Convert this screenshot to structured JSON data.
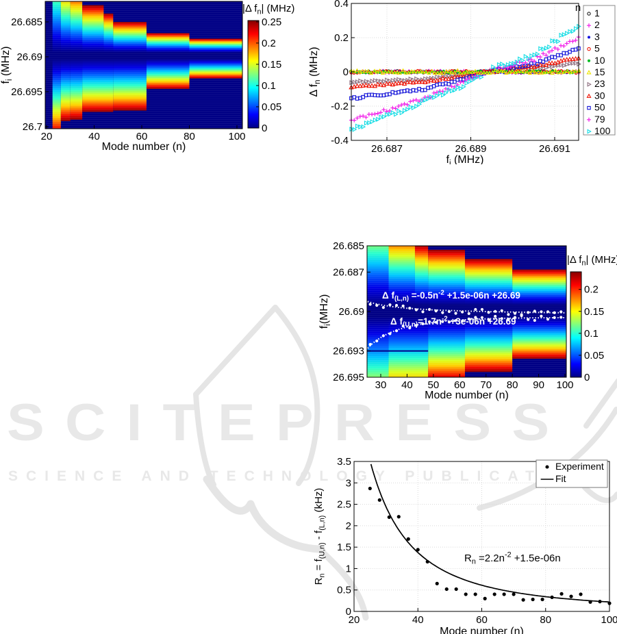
{
  "watermark": {
    "line1": "SCITEPRESS",
    "line2": "SCIENCE AND TECHNOLOGY PUBLICATIONS",
    "color": "#e8e8e8",
    "emblem_color": "#e5e5e5"
  },
  "palette": {
    "heat_background": "#000085",
    "jet_colorbar": [
      [
        0,
        "#000085"
      ],
      [
        0.125,
        "#0000ff"
      ],
      [
        0.375,
        "#00ffff"
      ],
      [
        0.625,
        "#ffff00"
      ],
      [
        0.875,
        "#ff0000"
      ],
      [
        1,
        "#870000"
      ]
    ],
    "jet_band": [
      [
        0,
        "#000085"
      ],
      [
        0.17,
        "#0000e8"
      ],
      [
        0.3,
        "#0063ff"
      ],
      [
        0.41,
        "#00c8ff"
      ],
      [
        0.51,
        "#29ffce"
      ],
      [
        0.6,
        "#85ff72"
      ],
      [
        0.68,
        "#dcff1f"
      ],
      [
        0.76,
        "#ffcf00"
      ],
      [
        0.84,
        "#ff6400"
      ],
      [
        0.92,
        "#ef0500"
      ],
      [
        1,
        "#8c0000"
      ]
    ]
  },
  "chart_data": [
    {
      "id": "heatmap_top_left",
      "type": "heatmap",
      "xlabel": "Mode number (n)",
      "ylabel": "f_{i} (MHz)",
      "colorbar_label": "|Δ f_{n}| (MHz)",
      "x_ticks": [
        "20",
        "40",
        "60",
        "80",
        "100"
      ],
      "x_tick_values": [
        20,
        40,
        60,
        80,
        100
      ],
      "y_ticks": [
        "26.685",
        "26.69",
        "26.695",
        "26.7"
      ],
      "y_tick_values": [
        26.685,
        26.69,
        26.695,
        26.7
      ],
      "colorbar_ticks": [
        "0",
        "0.05",
        "0.1",
        "0.15",
        "0.2",
        "0.25"
      ],
      "colorbar_tick_values": [
        0,
        0.05,
        0.1,
        0.15,
        0.2,
        0.25
      ],
      "colorbar_max": 0.253,
      "x_range": [
        19.4,
        102.3
      ],
      "y_range": [
        26.682,
        26.7003
      ],
      "band_center": [
        26.6894,
        26.6903
      ],
      "upper_steps": [
        [
          22.5,
          26,
          26.6756
        ],
        [
          26,
          30,
          26.6794
        ],
        [
          30,
          35,
          26.6806
        ],
        [
          35,
          44,
          26.6826
        ],
        [
          44,
          48,
          26.6838
        ],
        [
          48,
          62,
          26.685
        ],
        [
          62,
          80,
          26.6866
        ],
        [
          80,
          102.3,
          26.6874
        ]
      ],
      "lower_steps": [
        [
          22.5,
          26,
          26.7012
        ],
        [
          26,
          30,
          26.6992
        ],
        [
          30,
          35,
          26.699
        ],
        [
          35,
          48,
          26.6979
        ],
        [
          48,
          62,
          26.6977
        ],
        [
          62,
          80,
          26.6946
        ],
        [
          80,
          102.3,
          26.6931
        ]
      ]
    },
    {
      "id": "scatter_top_right",
      "type": "scatter",
      "xlabel": "f_{i} (MHz)",
      "ylabel": "Δ f_{n} (MHz)",
      "legend_title": "n",
      "x_ticks": [
        "26.687",
        "26.689",
        "26.691"
      ],
      "x_tick_values": [
        26.687,
        26.689,
        26.691
      ],
      "y_ticks": [
        "0.4",
        "0.2",
        "0",
        "-0.2",
        "-0.4"
      ],
      "y_tick_values": [
        0.4,
        0.2,
        0,
        -0.2,
        -0.4
      ],
      "x_range": [
        26.68615,
        26.69157
      ],
      "y_range": [
        -0.4,
        0.4
      ],
      "series": [
        {
          "label": "1",
          "color": "#1a1a1a",
          "marker": "circle-open",
          "flat": true,
          "noise": 0.012
        },
        {
          "label": "2",
          "color": "#f01ce8",
          "marker": "plus",
          "flat": true,
          "noise": 0.014
        },
        {
          "label": "3",
          "color": "#1414e0",
          "marker": "dot",
          "flat": true,
          "noise": 0.012
        },
        {
          "label": "5",
          "color": "#ee1100",
          "marker": "circle-open",
          "flat": true,
          "noise": 0.013
        },
        {
          "label": "10",
          "color": "#00bb22",
          "marker": "dot",
          "flat": true,
          "noise": 0.014
        },
        {
          "label": "15",
          "color": "#ece400",
          "marker": "tri-open",
          "flat": true,
          "noise": 0.016
        },
        {
          "label": "23",
          "color": "#8e7080",
          "marker": "tri-right-open",
          "flat": false,
          "noise": 0.01,
          "anchors": [
            [
              26.6861,
              -0.06
            ],
            [
              26.6879,
              -0.042
            ],
            [
              26.68875,
              -0.02
            ],
            [
              26.68955,
              0.004
            ],
            [
              26.6905,
              0.022
            ],
            [
              26.69155,
              0.05
            ]
          ]
        },
        {
          "label": "30",
          "color": "#ee1100",
          "marker": "tri-open",
          "flat": false,
          "noise": 0.012,
          "anchors": [
            [
              26.6861,
              -0.088
            ],
            [
              26.6879,
              -0.058
            ],
            [
              26.68875,
              -0.028
            ],
            [
              26.68955,
              0.005
            ],
            [
              26.6905,
              0.03
            ],
            [
              26.69155,
              0.078
            ]
          ]
        },
        {
          "label": "50",
          "color": "#1313d8",
          "marker": "square-open",
          "flat": false,
          "noise": 0.014,
          "anchors": [
            [
              26.6861,
              -0.155
            ],
            [
              26.6879,
              -0.1
            ],
            [
              26.68875,
              -0.048
            ],
            [
              26.68955,
              0.008
            ],
            [
              26.6905,
              0.045
            ],
            [
              26.69155,
              0.132
            ]
          ]
        },
        {
          "label": "79",
          "color": "#f01ce8",
          "marker": "plus",
          "flat": false,
          "noise": 0.022,
          "anchors": [
            [
              26.6861,
              -0.29
            ],
            [
              26.6879,
              -0.155
            ],
            [
              26.68875,
              -0.07
            ],
            [
              26.68955,
              0.012
            ],
            [
              26.6905,
              0.07
            ],
            [
              26.69155,
              0.2
            ]
          ]
        },
        {
          "label": "100",
          "color": "#12dce4",
          "marker": "tri-right-open",
          "flat": false,
          "noise": 0.026,
          "anchors": [
            [
              26.6861,
              -0.345
            ],
            [
              26.6879,
              -0.175
            ],
            [
              26.68875,
              -0.085
            ],
            [
              26.68955,
              0.02
            ],
            [
              26.6905,
              0.1
            ],
            [
              26.69155,
              0.265
            ]
          ]
        }
      ]
    },
    {
      "id": "heatmap_middle_right",
      "type": "heatmap",
      "xlabel": "Mode number (n)",
      "ylabel": "f_{i}(MHz)",
      "colorbar_label": "|Δ f_{n}| (MHz)",
      "x_ticks": [
        "30",
        "40",
        "50",
        "60",
        "70",
        "80",
        "90",
        "100"
      ],
      "x_tick_values": [
        30,
        40,
        50,
        60,
        70,
        80,
        90,
        100
      ],
      "y_ticks": [
        "26.685",
        "26.687",
        "26.69",
        "26.693",
        "26.695"
      ],
      "y_tick_values": [
        26.685,
        26.687,
        26.69,
        26.693,
        26.695
      ],
      "colorbar_ticks": [
        "0",
        "0.05",
        "0.1",
        "0.15",
        "0.2"
      ],
      "colorbar_tick_values": [
        0,
        0.05,
        0.1,
        0.15,
        0.2
      ],
      "colorbar_max": 0.24,
      "x_range": [
        24.8,
        100.5
      ],
      "y_range": [
        26.685,
        26.695
      ],
      "band_center": [
        26.6895,
        26.6904
      ],
      "upper_steps": [
        [
          24.8,
          33,
          26.6818
        ],
        [
          33,
          43,
          26.684
        ],
        [
          43,
          48,
          26.6849
        ],
        [
          48,
          62,
          26.6853
        ],
        [
          62,
          80,
          26.686
        ],
        [
          80,
          100.5,
          26.6868
        ]
      ],
      "lower_steps": [
        [
          24.8,
          33,
          26.698
        ],
        [
          33,
          48,
          26.6966
        ],
        [
          48,
          62,
          26.6953
        ],
        [
          62,
          80,
          26.6946
        ],
        [
          80,
          100.5,
          26.6936
        ]
      ],
      "dark_line": {
        "f": 26.693,
        "n_range": [
          24.8,
          48
        ]
      },
      "fit_curves": [
        {
          "name": "lower-branch-fit",
          "a": -0.5,
          "b": 1.5e-06,
          "c": 26.69,
          "equation": "Δ f_{(L,n)} =-0.5n^{-2} +1.5e-06n +26.69",
          "eq_x": 108,
          "eq_y": 96
        },
        {
          "name": "upper-branch-fit",
          "a": 1.7,
          "b": 3e-06,
          "c": 26.69,
          "equation": "Δ f_{(U,n)}=1.7n^{-2} +3e-06n +26.69",
          "eq_x": 120,
          "eq_y": 134
        }
      ]
    },
    {
      "id": "scatter_bottom_right",
      "type": "scatter-fit",
      "xlabel": "Mode number (n)",
      "ylabel": "R_{n} = f_{(U,n)} - f_{(L,n)} (kHz)",
      "x_ticks": [
        "20",
        "40",
        "60",
        "80",
        "100"
      ],
      "x_tick_values": [
        20,
        40,
        60,
        80,
        100
      ],
      "y_ticks": [
        "0",
        "0.5",
        "1",
        "1.5",
        "2",
        "2.5",
        "3",
        "3.5"
      ],
      "y_tick_values": [
        0,
        0.5,
        1,
        1.5,
        2,
        2.5,
        3,
        3.5
      ],
      "x_range": [
        20,
        100
      ],
      "y_range": [
        0,
        3.5
      ],
      "annotation": "R_{n} =2.2n^{-2} +1.5e-06n",
      "legend": [
        {
          "label": "Experiment",
          "marker": "dot",
          "color": "#000000"
        },
        {
          "label": "Fit",
          "marker": "line",
          "color": "#000000"
        }
      ],
      "experiment_points": [
        [
          25,
          2.87
        ],
        [
          28,
          2.6
        ],
        [
          31,
          2.2
        ],
        [
          34,
          2.21
        ],
        [
          37,
          1.69
        ],
        [
          40,
          1.44
        ],
        [
          43,
          1.16
        ],
        [
          46,
          0.65
        ],
        [
          49,
          0.52
        ],
        [
          52,
          0.52
        ],
        [
          55,
          0.4
        ],
        [
          58,
          0.4
        ],
        [
          61,
          0.3
        ],
        [
          64,
          0.4
        ],
        [
          67,
          0.4
        ],
        [
          70,
          0.4
        ],
        [
          73,
          0.27
        ],
        [
          76,
          0.28
        ],
        [
          79,
          0.28
        ],
        [
          82,
          0.33
        ],
        [
          85,
          0.41
        ],
        [
          88,
          0.35
        ],
        [
          91,
          0.4
        ],
        [
          94,
          0.22
        ],
        [
          97,
          0.23
        ],
        [
          100,
          0.19
        ]
      ],
      "fit": {
        "a": 2200,
        "power": -2,
        "clip_y": 3.44
      }
    }
  ]
}
